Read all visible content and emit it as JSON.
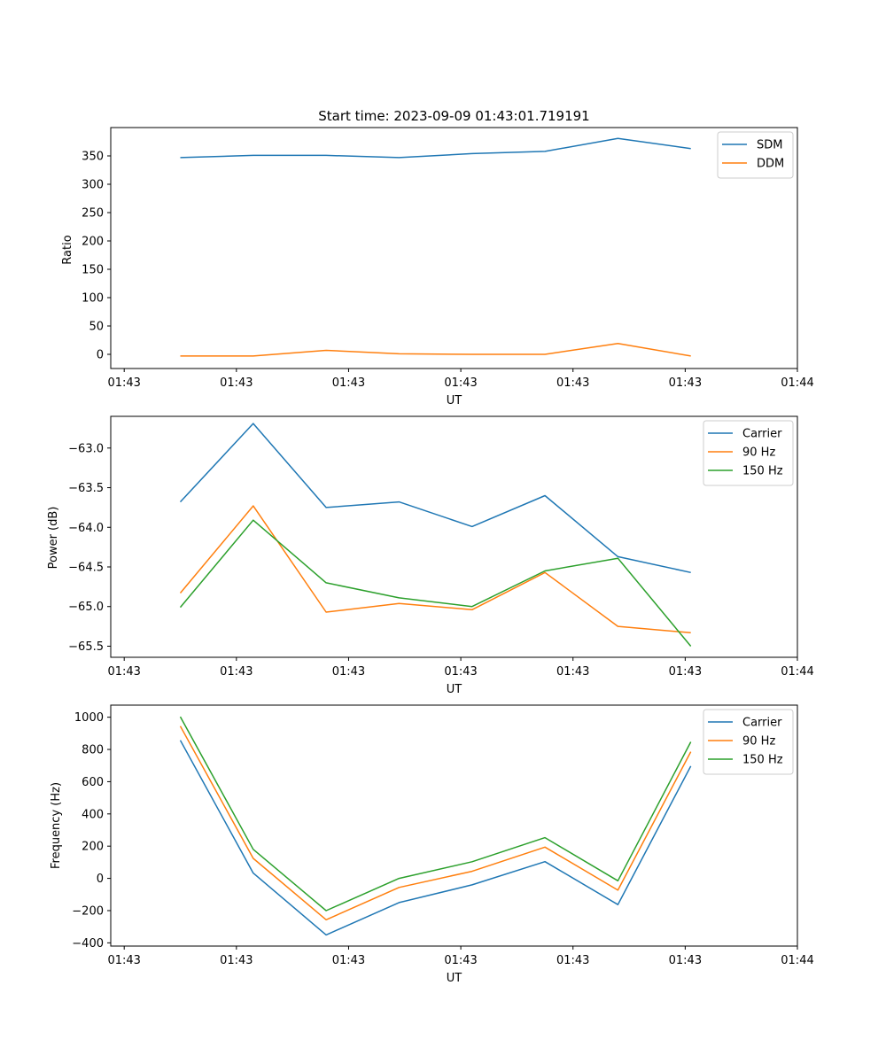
{
  "chart_data": [
    {
      "type": "line",
      "title": "Start time: 2023-09-09 01:43:01.719191",
      "xlabel": "UT",
      "ylabel": "Ratio",
      "x_tick_labels": [
        "01:43",
        "01:43",
        "01:43",
        "01:43",
        "01:43",
        "01:43",
        "01:44"
      ],
      "x_tick_values": [
        0,
        1,
        2,
        3,
        4,
        5,
        6
      ],
      "xlim": [
        -0.12,
        6.0
      ],
      "ylim": [
        -25,
        400
      ],
      "y_ticks": [
        0,
        50,
        100,
        150,
        200,
        250,
        300,
        350
      ],
      "x": [
        0.5,
        1.15,
        1.8,
        2.45,
        3.1,
        3.75,
        4.4,
        5.05
      ],
      "series": [
        {
          "name": "SDM",
          "color": "#1f77b4",
          "values": [
            347,
            351,
            351,
            347,
            354,
            358,
            381,
            363
          ]
        },
        {
          "name": "DDM",
          "color": "#ff7f0e",
          "values": [
            -3,
            -3,
            7,
            1,
            0,
            0,
            19,
            -3
          ]
        }
      ],
      "legend": "top-right",
      "grid": false
    },
    {
      "type": "line",
      "title": "",
      "xlabel": "UT",
      "ylabel": "Power (dB)",
      "x_tick_labels": [
        "01:43",
        "01:43",
        "01:43",
        "01:43",
        "01:43",
        "01:43",
        "01:44"
      ],
      "x_tick_values": [
        0,
        1,
        2,
        3,
        4,
        5,
        6
      ],
      "xlim": [
        -0.12,
        6.0
      ],
      "ylim": [
        -65.64,
        -62.6
      ],
      "y_ticks": [
        -65.5,
        -65.0,
        -64.5,
        -64.0,
        -63.5,
        -63.0
      ],
      "y_tick_labels": [
        "−65.5",
        "−65.0",
        "−64.5",
        "−64.0",
        "−63.5",
        "−63.0"
      ],
      "x": [
        0.5,
        1.15,
        1.8,
        2.45,
        3.1,
        3.75,
        4.4,
        5.05
      ],
      "series": [
        {
          "name": "Carrier",
          "color": "#1f77b4",
          "values": [
            -63.68,
            -62.69,
            -63.75,
            -63.68,
            -63.99,
            -63.6,
            -64.37,
            -64.57
          ]
        },
        {
          "name": "90 Hz",
          "color": "#ff7f0e",
          "values": [
            -64.83,
            -63.73,
            -65.07,
            -64.96,
            -65.04,
            -64.57,
            -65.25,
            -65.33
          ]
        },
        {
          "name": "150 Hz",
          "color": "#2ca02c",
          "values": [
            -65.01,
            -63.91,
            -64.7,
            -64.89,
            -65.0,
            -64.55,
            -64.39,
            -65.5
          ]
        }
      ],
      "legend": "top-right",
      "grid": false
    },
    {
      "type": "line",
      "title": "",
      "xlabel": "UT",
      "ylabel": "Frequency (Hz)",
      "x_tick_labels": [
        "01:43",
        "01:43",
        "01:43",
        "01:43",
        "01:43",
        "01:43",
        "01:44"
      ],
      "x_tick_values": [
        0,
        1,
        2,
        3,
        4,
        5,
        6
      ],
      "xlim": [
        -0.12,
        6.0
      ],
      "ylim": [
        -420,
        1075
      ],
      "y_ticks": [
        -400,
        -200,
        0,
        200,
        400,
        600,
        800,
        1000
      ],
      "y_tick_labels": [
        "−400",
        "−200",
        "0",
        "200",
        "400",
        "600",
        "800",
        "1000"
      ],
      "x": [
        0.5,
        1.15,
        1.8,
        2.45,
        3.1,
        3.75,
        4.4,
        5.05
      ],
      "series": [
        {
          "name": "Carrier",
          "color": "#1f77b4",
          "values": [
            857,
            33,
            -351,
            -150,
            -40,
            104,
            -163,
            697
          ]
        },
        {
          "name": "90 Hz",
          "color": "#ff7f0e",
          "values": [
            945,
            124,
            -257,
            -56,
            44,
            194,
            -73,
            786
          ]
        },
        {
          "name": "150 Hz",
          "color": "#2ca02c",
          "values": [
            1003,
            180,
            -200,
            0,
            103,
            253,
            -15,
            847
          ]
        }
      ],
      "legend": "top-right",
      "grid": false
    }
  ]
}
